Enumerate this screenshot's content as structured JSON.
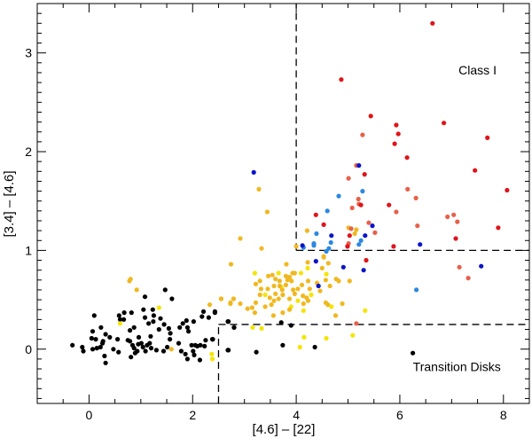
{
  "chart_data": {
    "type": "scatter",
    "title": "",
    "xlabel": "[4.6] – [22]",
    "ylabel": "[3.4] – [4.6]",
    "xlim": [
      -1.0,
      8.5
    ],
    "ylim": [
      -0.55,
      3.5
    ],
    "xticks": [
      "0",
      "2",
      "4",
      "6",
      "8"
    ],
    "yticks": [
      "0",
      "1",
      "2",
      "3"
    ],
    "xtick_values": [
      0,
      2,
      4,
      6,
      8
    ],
    "ytick_values": [
      0,
      1,
      2,
      3
    ],
    "grid": false,
    "annotations": [
      {
        "text": "Class I",
        "x": 7.5,
        "y": 2.78
      },
      {
        "text": "Transition Disks",
        "x": 7.1,
        "y": -0.22
      }
    ],
    "boundaries": [
      {
        "name": "class-i-vertical",
        "x": [
          4,
          4
        ],
        "y": [
          1,
          3.5
        ]
      },
      {
        "name": "class-i-horizontal",
        "x": [
          4,
          8.5
        ],
        "y": [
          1,
          1
        ]
      },
      {
        "name": "transition-horizontal",
        "x": [
          2.5,
          8.5
        ],
        "y": [
          0.25,
          0.25
        ]
      },
      {
        "name": "transition-vertical",
        "x": [
          2.5,
          2.5
        ],
        "y": [
          -0.55,
          0.25
        ]
      }
    ],
    "series": [
      {
        "name": "black",
        "color": "#000000",
        "points": [
          [
            -0.32,
            0.04
          ],
          [
            -0.13,
            0.02
          ],
          [
            -0.11,
            -0.02
          ],
          [
            0.07,
            0.0
          ],
          [
            0.1,
            0.34
          ],
          [
            0.07,
            0.18
          ],
          [
            0.05,
            0.11
          ],
          [
            0.13,
            0.1
          ],
          [
            0.15,
            0.01
          ],
          [
            0.22,
            0.02
          ],
          [
            0.23,
            0.22
          ],
          [
            0.27,
            0.08
          ],
          [
            0.26,
            0.06
          ],
          [
            0.32,
            0.15
          ],
          [
            0.3,
            -0.07
          ],
          [
            0.32,
            -0.14
          ],
          [
            0.4,
            0.12
          ],
          [
            0.47,
            0.0
          ],
          [
            0.55,
            0.1
          ],
          [
            0.57,
            -0.03
          ],
          [
            0.58,
            0.34
          ],
          [
            0.6,
            0.3
          ],
          [
            0.67,
            0.3
          ],
          [
            0.68,
            0.37
          ],
          [
            0.75,
            0.09
          ],
          [
            0.79,
            0.08
          ],
          [
            0.79,
            0.19
          ],
          [
            0.82,
            0.37
          ],
          [
            0.81,
            -0.08
          ],
          [
            0.84,
            0.04
          ],
          [
            0.87,
            0.01
          ],
          [
            0.87,
            0.22
          ],
          [
            0.89,
            -0.04
          ],
          [
            0.93,
            -0.02
          ],
          [
            0.96,
            0.12
          ],
          [
            0.95,
            0.05
          ],
          [
            1.01,
            0.06
          ],
          [
            1.04,
            0.02
          ],
          [
            1.05,
            0.4
          ],
          [
            1.08,
            0.53
          ],
          [
            1.08,
            0.32
          ],
          [
            1.09,
            -0.02
          ],
          [
            1.12,
            0.04
          ],
          [
            1.15,
            0.26
          ],
          [
            1.17,
            0.06
          ],
          [
            1.19,
            0.13
          ],
          [
            1.2,
            0.01
          ],
          [
            1.23,
            0.4
          ],
          [
            1.24,
            0.28
          ],
          [
            1.25,
            0.34
          ],
          [
            1.3,
            -0.01
          ],
          [
            1.35,
            0.2
          ],
          [
            1.38,
            0.31
          ],
          [
            1.44,
            -0.02
          ],
          [
            1.45,
            0.25
          ],
          [
            1.47,
            0.6
          ],
          [
            1.51,
            0.02
          ],
          [
            1.54,
            0.21
          ],
          [
            1.56,
            0.1
          ],
          [
            1.57,
            0.16
          ],
          [
            1.6,
            0.51
          ],
          [
            1.73,
            0.06
          ],
          [
            1.75,
            0.22
          ],
          [
            1.78,
            -0.02
          ],
          [
            1.81,
            0.26
          ],
          [
            1.86,
            -0.05
          ],
          [
            1.88,
            0.29
          ],
          [
            1.9,
            0.22
          ],
          [
            1.92,
            0.18
          ],
          [
            1.9,
            -0.1
          ],
          [
            1.98,
            0.04
          ],
          [
            2.02,
            0.28
          ],
          [
            2.01,
            -0.02
          ],
          [
            2.03,
            -0.06
          ],
          [
            2.05,
            0.04
          ],
          [
            2.09,
            0.03
          ],
          [
            2.14,
            -0.11
          ],
          [
            2.15,
            0.04
          ],
          [
            2.18,
            0.33
          ],
          [
            2.21,
            0.38
          ],
          [
            2.23,
            0.03
          ],
          [
            2.25,
            0.09
          ],
          [
            2.31,
            0.32
          ],
          [
            2.39,
            0.1
          ],
          [
            2.43,
            0.37
          ],
          [
            2.69,
            0.28
          ],
          [
            2.69,
            -0.01
          ],
          [
            2.8,
            0.22
          ],
          [
            2.43,
            0.38
          ],
          [
            2.68,
            0.28
          ],
          [
            2.8,
            0.22
          ],
          [
            3.71,
            0.27
          ],
          [
            3.9,
            0.24
          ],
          [
            2.38,
            0.1
          ],
          [
            2.68,
            -0.01
          ],
          [
            3.23,
            -0.03
          ],
          [
            3.74,
            0.04
          ],
          [
            4.36,
            0.02
          ],
          [
            6.25,
            -0.04
          ]
        ]
      },
      {
        "name": "yellow",
        "color": "#f5e400",
        "points": [
          [
            0.6,
            0.26
          ],
          [
            1.35,
            0.42
          ],
          [
            2.37,
            -0.05
          ],
          [
            2.38,
            -0.1
          ],
          [
            3.2,
            0.77
          ],
          [
            3.66,
            0.77
          ],
          [
            4.09,
            0.77
          ],
          [
            4.22,
            0.82
          ],
          [
            4.58,
            0.76
          ],
          [
            3.71,
            0.63
          ],
          [
            3.4,
            0.55
          ],
          [
            4.03,
            0.49
          ],
          [
            4.29,
            0.55
          ],
          [
            3.9,
            0.43
          ],
          [
            4.14,
            0.39
          ],
          [
            4.68,
            0.43
          ],
          [
            5.33,
            0.39
          ],
          [
            3.16,
            0.22
          ],
          [
            3.33,
            0.21
          ],
          [
            4.15,
            0.12
          ],
          [
            4.58,
            0.11
          ],
          [
            5.09,
            0.14
          ],
          [
            4.07,
            0.02
          ]
        ]
      },
      {
        "name": "orange",
        "color": "#f0b820",
        "points": [
          [
            0.78,
            0.69
          ],
          [
            0.8,
            0.71
          ],
          [
            0.92,
            0.6
          ],
          [
            2.33,
            0.45
          ],
          [
            2.55,
            0.51
          ],
          [
            2.73,
            0.47
          ],
          [
            2.79,
            0.51
          ],
          [
            1.59,
            0.0
          ],
          [
            3.28,
            1.62
          ],
          [
            3.44,
            1.39
          ],
          [
            2.92,
            1.12
          ],
          [
            3.33,
            1.02
          ],
          [
            4.21,
            1.2
          ],
          [
            4.0,
            1.04
          ],
          [
            2.74,
            0.86
          ],
          [
            3.81,
            0.86
          ],
          [
            4.22,
            0.88
          ],
          [
            4.53,
            0.94
          ],
          [
            4.62,
            0.87
          ],
          [
            5.16,
            1.21
          ],
          [
            3.3,
            0.69
          ],
          [
            3.46,
            0.74
          ],
          [
            3.54,
            0.75
          ],
          [
            3.6,
            0.71
          ],
          [
            3.68,
            0.69
          ],
          [
            3.8,
            0.74
          ],
          [
            3.87,
            0.73
          ],
          [
            3.93,
            0.77
          ],
          [
            3.97,
            0.77
          ],
          [
            3.83,
            0.7
          ],
          [
            3.91,
            0.69
          ],
          [
            3.8,
            0.65
          ],
          [
            3.68,
            0.64
          ],
          [
            3.57,
            0.64
          ],
          [
            3.45,
            0.61
          ],
          [
            3.32,
            0.61
          ],
          [
            3.22,
            0.66
          ],
          [
            3.3,
            0.55
          ],
          [
            3.49,
            0.52
          ],
          [
            3.57,
            0.49
          ],
          [
            3.66,
            0.51
          ],
          [
            3.74,
            0.55
          ],
          [
            3.87,
            0.51
          ],
          [
            4.03,
            0.61
          ],
          [
            4.11,
            0.65
          ],
          [
            4.23,
            0.69
          ],
          [
            4.26,
            0.61
          ],
          [
            4.4,
            0.67
          ],
          [
            4.46,
            0.59
          ],
          [
            4.2,
            0.52
          ],
          [
            4.14,
            0.46
          ],
          [
            4.23,
            0.49
          ],
          [
            4.57,
            0.47
          ],
          [
            4.61,
            0.45
          ],
          [
            4.77,
            0.71
          ],
          [
            4.82,
            0.69
          ],
          [
            5.03,
            0.69
          ],
          [
            4.89,
            0.46
          ],
          [
            4.65,
            0.64
          ],
          [
            4.76,
            0.34
          ],
          [
            3.87,
            0.4
          ],
          [
            3.52,
            0.45
          ],
          [
            3.4,
            0.43
          ],
          [
            3.2,
            0.37
          ],
          [
            3.15,
            0.42
          ],
          [
            3.06,
            0.41
          ],
          [
            3.22,
            0.47
          ],
          [
            2.92,
            0.46
          ],
          [
            2.79,
            0.51
          ],
          [
            2.73,
            0.46
          ],
          [
            2.55,
            0.51
          ],
          [
            3.56,
            0.34
          ],
          [
            3.73,
            0.6
          ],
          [
            3.94,
            0.6
          ],
          [
            3.6,
            0.56
          ],
          [
            3.97,
            0.56
          ],
          [
            4.13,
            0.54
          ],
          [
            3.74,
            0.37
          ],
          [
            4.57,
            0.7
          ],
          [
            4.5,
            0.82
          ],
          [
            4.53,
            0.93
          ],
          [
            5.13,
            1.17
          ],
          [
            5.01,
            1.23
          ]
        ]
      },
      {
        "name": "salmon",
        "color": "#e8604a",
        "points": [
          [
            5.16,
            1.86
          ],
          [
            5.01,
            1.73
          ],
          [
            5.28,
            2.17
          ],
          [
            5.08,
            1.43
          ],
          [
            5.21,
            1.47
          ],
          [
            6.15,
            1.62
          ],
          [
            6.31,
            1.53
          ],
          [
            5.93,
            1.39
          ],
          [
            5.4,
            1.28
          ],
          [
            5.52,
            1.18
          ],
          [
            5.06,
            1.22
          ],
          [
            6.34,
            1.25
          ],
          [
            6.92,
            1.34
          ],
          [
            7.04,
            1.36
          ],
          [
            7.11,
            1.29
          ],
          [
            5.01,
            1.07
          ],
          [
            7.15,
            0.83
          ],
          [
            7.32,
            0.72
          ],
          [
            5.16,
            0.26
          ],
          [
            5.2,
            1.52
          ]
        ]
      },
      {
        "name": "red",
        "color": "#e0141a",
        "points": [
          [
            6.63,
            3.3
          ],
          [
            4.87,
            2.73
          ],
          [
            5.44,
            2.36
          ],
          [
            5.93,
            2.27
          ],
          [
            5.97,
            2.18
          ],
          [
            5.9,
            2.08
          ],
          [
            6.85,
            2.29
          ],
          [
            7.69,
            2.14
          ],
          [
            6.14,
            1.94
          ],
          [
            7.45,
            1.81
          ],
          [
            8.07,
            1.61
          ],
          [
            5.32,
            1.77
          ],
          [
            5.25,
            1.46
          ],
          [
            5.79,
            1.46
          ],
          [
            7.9,
            1.23
          ],
          [
            5.03,
            1.15
          ],
          [
            7.08,
            1.12
          ],
          [
            4.99,
            1.04
          ],
          [
            5.88,
            1.04
          ],
          [
            5.35,
            0.9
          ],
          [
            4.38,
            1.36
          ],
          [
            4.53,
            1.26
          ]
        ]
      },
      {
        "name": "light-blue",
        "color": "#2a88e0",
        "points": [
          [
            4.82,
            1.55
          ],
          [
            5.28,
            1.6
          ],
          [
            5.25,
            1.1
          ],
          [
            5.21,
            1.06
          ],
          [
            6.32,
            0.6
          ],
          [
            4.6,
            1.4
          ],
          [
            4.39,
            1.17
          ],
          [
            4.34,
            1.07
          ],
          [
            4.34,
            1.05
          ],
          [
            4.14,
            1.03
          ],
          [
            4.67,
            1.08
          ],
          [
            4.63,
            1.02
          ],
          [
            4.58,
            0.99
          ]
        ]
      },
      {
        "name": "dark-blue",
        "color": "#0a14c8",
        "points": [
          [
            5.21,
            1.86
          ],
          [
            5.47,
            1.25
          ],
          [
            5.33,
            1.15
          ],
          [
            6.39,
            1.06
          ],
          [
            4.91,
            0.83
          ],
          [
            5.3,
            0.8
          ],
          [
            7.57,
            0.84
          ],
          [
            3.18,
            1.79
          ],
          [
            4.68,
            1.15
          ],
          [
            4.12,
            1.05
          ],
          [
            4.38,
            0.89
          ],
          [
            4.43,
            0.64
          ]
        ]
      }
    ]
  }
}
